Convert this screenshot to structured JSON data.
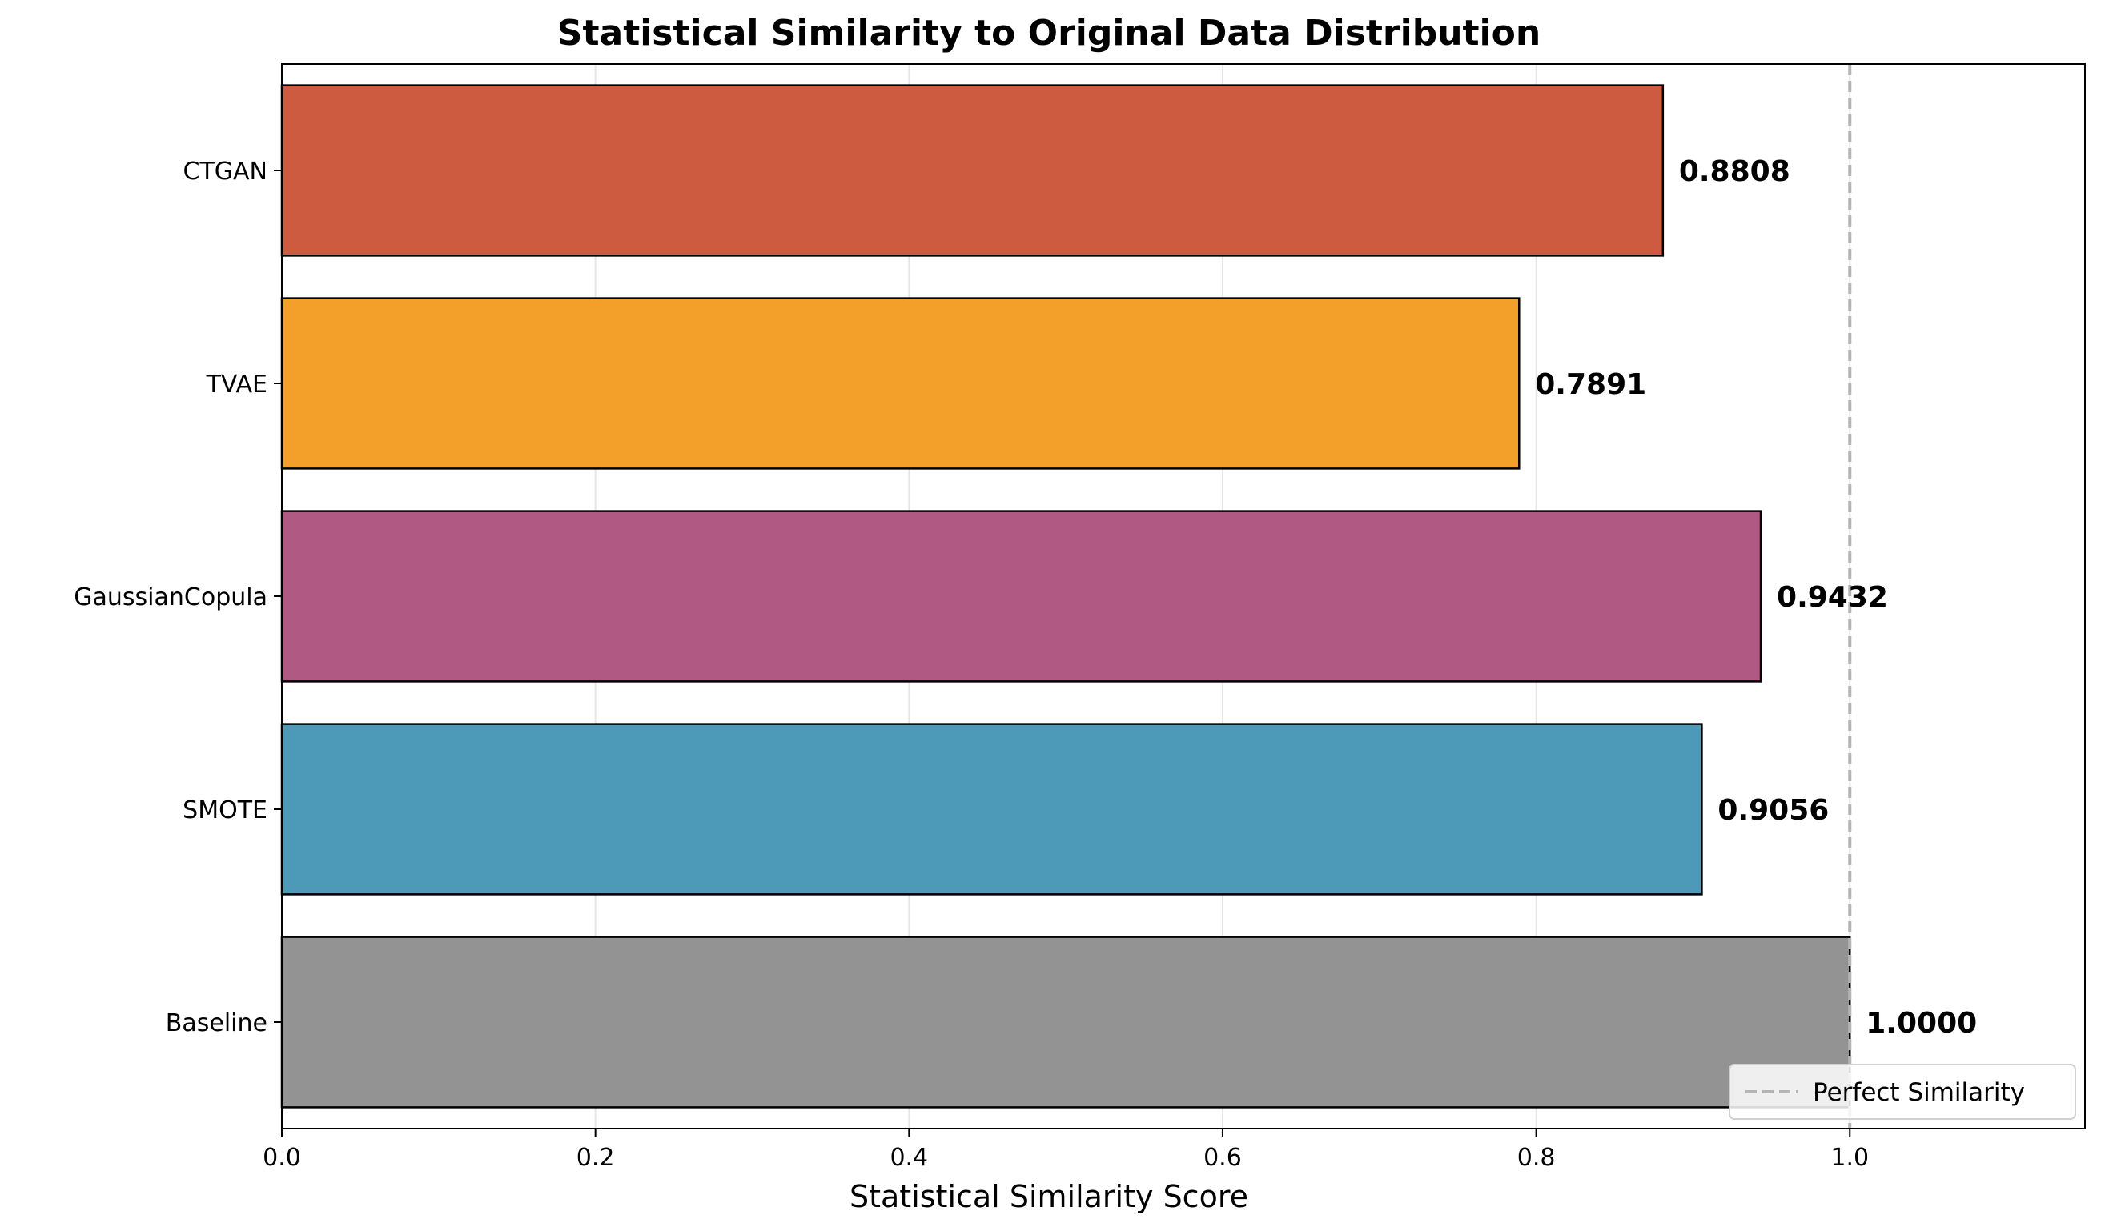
{
  "chart_data": {
    "type": "bar",
    "orientation": "horizontal",
    "title": "Statistical Similarity to Original Data Distribution",
    "xlabel": "Statistical Similarity Score",
    "ylabel": "",
    "categories": [
      "CTGAN",
      "TVAE",
      "GaussianCopula",
      "SMOTE",
      "Baseline"
    ],
    "values": [
      0.8808,
      0.7891,
      0.9432,
      0.9056,
      1.0
    ],
    "value_labels": [
      "0.8808",
      "0.7891",
      "0.9432",
      "0.9056",
      "1.0000"
    ],
    "colors": [
      "#cd5b3f",
      "#f2a02a",
      "#b05983",
      "#4d99b8",
      "#939393"
    ],
    "xlim": [
      0,
      1.15
    ],
    "xticks": [
      0.0,
      0.2,
      0.4,
      0.6,
      0.8,
      1.0
    ],
    "xtick_labels": [
      "0.0",
      "0.2",
      "0.4",
      "0.6",
      "0.8",
      "1.0"
    ],
    "grid": "x",
    "reference_line": {
      "x": 1.0,
      "style": "dashed",
      "color": "#b5b5b5",
      "label": "Perfect Similarity"
    },
    "legend": {
      "position": "bottom-right",
      "entries": [
        "Perfect Similarity"
      ]
    }
  }
}
